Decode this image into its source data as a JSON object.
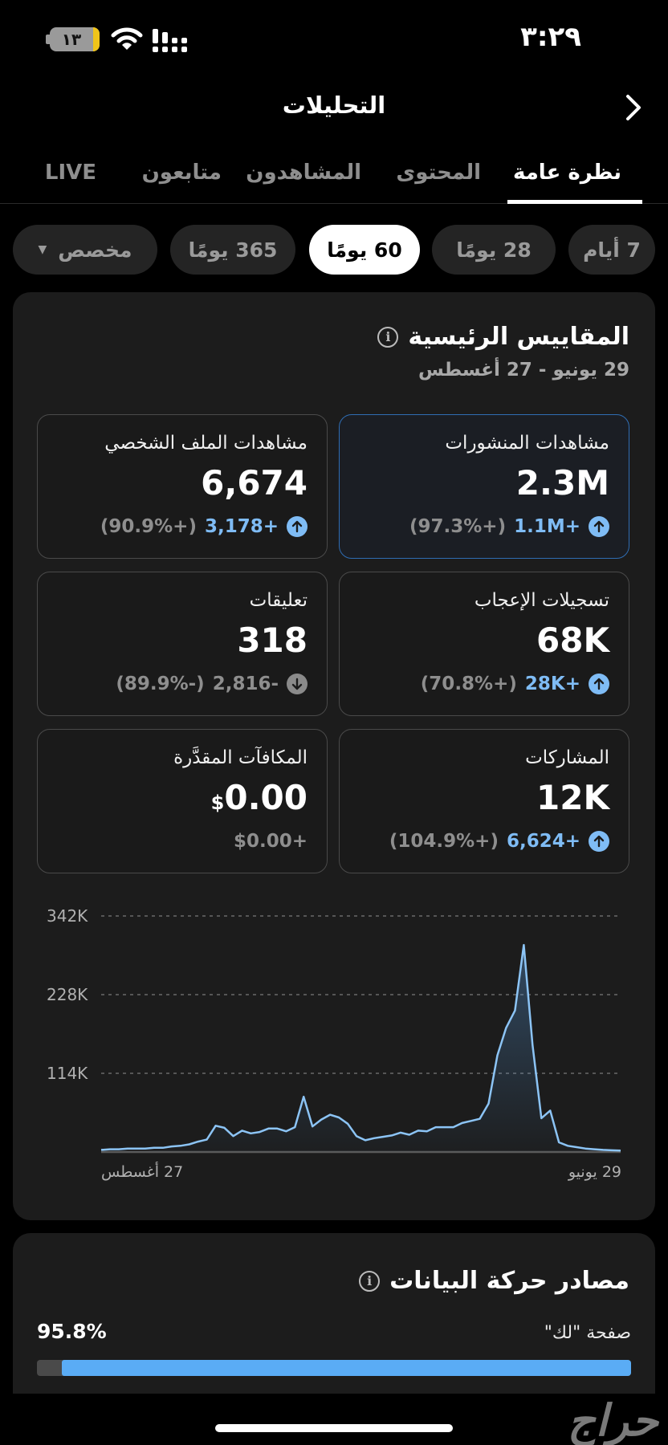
{
  "status_bar": {
    "time": "٣:٢٩",
    "battery_level": "١٣",
    "battery_color": "#f0c419"
  },
  "header": {
    "title": "التحليلات",
    "back_icon": "chevron-right-icon"
  },
  "tabs": [
    {
      "label": "نظرة عامة",
      "active": true
    },
    {
      "label": "المحتوى",
      "active": false
    },
    {
      "label": "المشاهدون",
      "active": false
    },
    {
      "label": "متابعون",
      "active": false
    },
    {
      "label": "LIVE",
      "active": false
    }
  ],
  "date_ranges": [
    {
      "label": "7 أيام",
      "active": false
    },
    {
      "label": "28 يومًا",
      "active": false
    },
    {
      "label": "60 يومًا",
      "active": true
    },
    {
      "label": "365 يومًا",
      "active": false
    },
    {
      "label": "مخصص",
      "active": false,
      "caret": "▼"
    }
  ],
  "key_metrics": {
    "title": "المقاييس الرئيسية",
    "info_icon": "i",
    "date_range": "29 يونيو - 27 أغسطس",
    "cards": [
      {
        "label": "مشاهدات المنشورات",
        "value": "2.3M",
        "delta": "1.1M+",
        "pct": "(97.3%+)",
        "direction": "up",
        "selected": true
      },
      {
        "label": "مشاهدات الملف الشخصي",
        "value": "6,674",
        "delta": "3,178+",
        "pct": "(90.9%+)",
        "direction": "up",
        "selected": false
      },
      {
        "label": "تسجيلات الإعجاب",
        "value": "68K",
        "delta": "28K+",
        "pct": "(70.8%+)",
        "direction": "up",
        "selected": false
      },
      {
        "label": "تعليقات",
        "value": "318",
        "delta": "2,816-",
        "pct": "(89.9%-)",
        "direction": "down",
        "selected": false
      },
      {
        "label": "المشاركات",
        "value": "12K",
        "delta": "6,624+",
        "pct": "(104.9%+)",
        "direction": "up",
        "selected": false
      },
      {
        "label": "المكافآت المقدَّرة",
        "value": "0.00",
        "currency": "$",
        "delta": "$0.00+",
        "pct": "",
        "direction": "none",
        "selected": false
      }
    ]
  },
  "chart_data": {
    "type": "area",
    "title": "مشاهدات المنشورات",
    "xlabel": "",
    "ylabel": "",
    "y_ticks": [
      "114K",
      "228K",
      "342K"
    ],
    "y_tick_values": [
      114000,
      228000,
      342000
    ],
    "ylim": [
      0,
      342000
    ],
    "x_tick_labels": {
      "start": "29 يونيو",
      "end": "27 أغسطس"
    },
    "x_direction": "rtl",
    "grid": "dashed horizontal",
    "line_color": "#8cc4f5",
    "series": [
      {
        "name": "مشاهدات المنشورات",
        "values": [
          2000,
          2500,
          3000,
          4000,
          5000,
          7000,
          9000,
          14000,
          60000,
          49000,
          155000,
          300000,
          205000,
          180000,
          140000,
          70000,
          48000,
          45000,
          42000,
          36000,
          36000,
          36000,
          30000,
          31000,
          25000,
          28000,
          24000,
          22000,
          20000,
          17000,
          23000,
          41000,
          50000,
          54000,
          47000,
          37000,
          80000,
          36000,
          30000,
          34000,
          34000,
          29000,
          27000,
          31000,
          23000,
          35000,
          38000,
          18000,
          15000,
          11000,
          9000,
          8000,
          6000,
          6000,
          5000,
          5000,
          5000,
          4000,
          4000,
          3000
        ]
      }
    ]
  },
  "traffic_sources": {
    "title": "مصادر حركة البيانات",
    "info_icon": "i",
    "items": [
      {
        "label": "صفحة \"لك\"",
        "percent": "95.8%",
        "value": 95.8,
        "color": "#5aacf5"
      }
    ]
  },
  "watermark": "حراج"
}
